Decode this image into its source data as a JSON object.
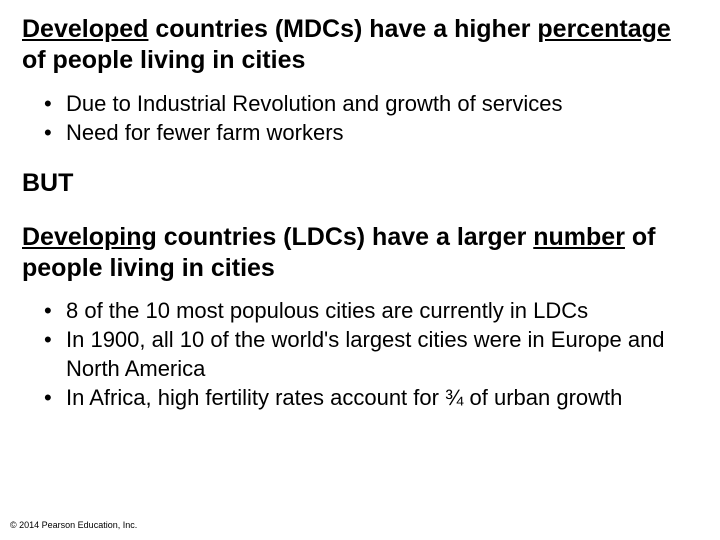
{
  "heading1": {
    "underlined1": "Developed",
    "plain1": " countries (MDCs) have a higher ",
    "underlined2": "percentage",
    "plain2": " of people living in cities"
  },
  "bullets1": [
    "Due to Industrial Revolution and growth of services",
    "Need for fewer farm workers"
  ],
  "but_label": "BUT",
  "heading2": {
    "underlined1": "Developing",
    "plain1": " countries (LDCs) have a larger ",
    "underlined2": "number",
    "plain2": " of people living in cities"
  },
  "bullets2": [
    "8 of the 10 most populous cities are currently in LDCs",
    "In 1900, all 10 of the world's largest cities were in Europe and North America",
    "In Africa, high fertility rates account for ¾ of urban growth"
  ],
  "copyright": "© 2014 Pearson Education, Inc."
}
